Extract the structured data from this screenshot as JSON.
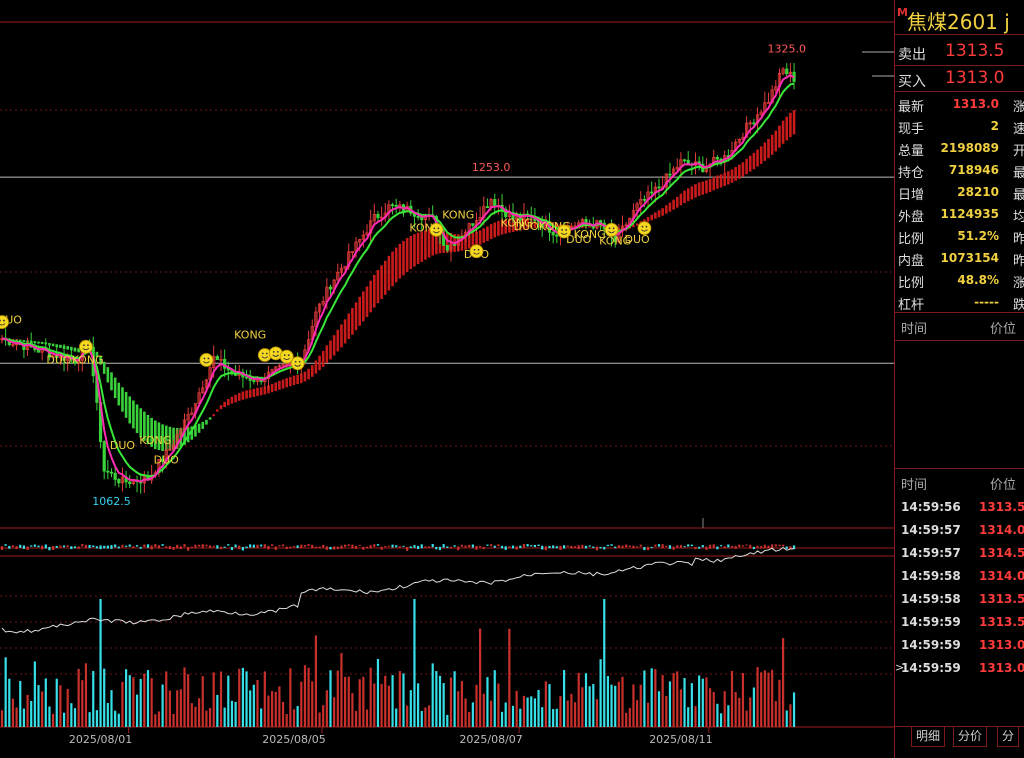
{
  "symbol": {
    "badge": "M",
    "name": "焦煤2601",
    "code_partial": "j"
  },
  "bid_ask": {
    "sell_label": "卖出",
    "sell_price": "1313.5",
    "buy_label": "买入",
    "buy_price": "1313.0"
  },
  "quote": [
    {
      "label": "最新",
      "value": "1313.0",
      "color": "#ff3b3b",
      "right_label": "涨"
    },
    {
      "label": "现手",
      "value": "2",
      "color": "#f0d040",
      "right_label": "速"
    },
    {
      "label": "总量",
      "value": "2198089",
      "color": "#f0d040",
      "right_label": "开"
    },
    {
      "label": "持仓",
      "value": "718946",
      "color": "#f0d040",
      "right_label": "最"
    },
    {
      "label": "日增",
      "value": "28210",
      "color": "#f0d040",
      "right_label": "最"
    },
    {
      "label": "外盘",
      "value": "1124935",
      "color": "#f0d040",
      "right_label": "均"
    },
    {
      "label": "比例",
      "value": "51.2%",
      "color": "#f0d040",
      "right_label": "昨"
    },
    {
      "label": "内盘",
      "value": "1073154",
      "color": "#f0d040",
      "right_label": "昨"
    },
    {
      "label": "比例",
      "value": "48.8%",
      "color": "#f0d040",
      "right_label": "涨"
    },
    {
      "label": "杠杆",
      "value": "-----",
      "color": "#f0d040",
      "right_label": "跌"
    }
  ],
  "mini_header": {
    "time": "时间",
    "price": "价位"
  },
  "ticks_header": {
    "time": "时间",
    "price": "价位"
  },
  "ticks": [
    {
      "time": "14:59:56",
      "price": "1313.5",
      "color": "#ff3b3b"
    },
    {
      "time": "14:59:57",
      "price": "1314.0",
      "color": "#ff3b3b"
    },
    {
      "time": "14:59:57",
      "price": "1314.5",
      "color": "#ff3b3b"
    },
    {
      "time": "14:59:58",
      "price": "1314.0",
      "color": "#ff3b3b"
    },
    {
      "time": "14:59:58",
      "price": "1313.5",
      "color": "#ff3b3b"
    },
    {
      "time": "14:59:59",
      "price": "1313.5",
      "color": "#ff3b3b"
    },
    {
      "time": "14:59:59",
      "price": "1313.0",
      "color": "#ff3b3b"
    },
    {
      "time": "14:59:59",
      "price": "1313.0",
      "color": "#ff3b3b",
      "marker": ">"
    }
  ],
  "tabs": [
    "明细",
    "分价",
    "分"
  ],
  "colors": {
    "up": "#e23b3b",
    "down": "#35e0e8",
    "ribbon_green": "#3ad23a",
    "ribbon_red": "#c91b1b",
    "ma_fast": "#ff2bb3",
    "ma_slow": "#38e838",
    "signal": "#f0d040"
  },
  "chart_data": {
    "type": "candlestick",
    "x_labels": [
      {
        "label": "2025/08/01",
        "index": 27
      },
      {
        "label": "2025/08/05",
        "index": 80
      },
      {
        "label": "2025/08/07",
        "index": 134
      },
      {
        "label": "2025/08/11",
        "index": 186
      }
    ],
    "price_range": [
      1040,
      1335
    ],
    "high_label": {
      "text": "1325.0",
      "index": 215,
      "value": 1325.0
    },
    "low_label": {
      "text": "1062.5",
      "index": 30,
      "value": 1062.5
    },
    "mid_label": {
      "text": "1253.0",
      "index": 134,
      "value": 1253.0
    },
    "h_lines": [
      1253.0,
      1140.0
    ],
    "anchors": [
      [
        0,
        1155
      ],
      [
        10,
        1148
      ],
      [
        20,
        1142
      ],
      [
        24,
        1152
      ],
      [
        28,
        1075
      ],
      [
        33,
        1068
      ],
      [
        40,
        1070
      ],
      [
        46,
        1088
      ],
      [
        52,
        1112
      ],
      [
        58,
        1143
      ],
      [
        64,
        1133
      ],
      [
        70,
        1130
      ],
      [
        76,
        1136
      ],
      [
        82,
        1142
      ],
      [
        86,
        1170
      ],
      [
        90,
        1188
      ],
      [
        96,
        1208
      ],
      [
        102,
        1228
      ],
      [
        106,
        1235
      ],
      [
        112,
        1233
      ],
      [
        118,
        1227
      ],
      [
        122,
        1210
      ],
      [
        128,
        1223
      ],
      [
        134,
        1240
      ],
      [
        140,
        1228
      ],
      [
        146,
        1228
      ],
      [
        152,
        1219
      ],
      [
        158,
        1225
      ],
      [
        164,
        1224
      ],
      [
        168,
        1214
      ],
      [
        174,
        1235
      ],
      [
        180,
        1247
      ],
      [
        186,
        1262
      ],
      [
        192,
        1259
      ],
      [
        198,
        1265
      ],
      [
        204,
        1283
      ],
      [
        210,
        1300
      ],
      [
        214,
        1318
      ],
      [
        217,
        1313
      ]
    ],
    "signals": [
      {
        "text": "DUO",
        "index": 2,
        "value": 1164
      },
      {
        "text": "DUOKONG",
        "index": 20,
        "value": 1140
      },
      {
        "text": "DUO",
        "index": 33,
        "value": 1088
      },
      {
        "text": "KONG",
        "index": 42,
        "value": 1091
      },
      {
        "text": "DUO",
        "index": 45,
        "value": 1079
      },
      {
        "text": "KONG",
        "index": 68,
        "value": 1155
      },
      {
        "text": "KONG",
        "index": 125,
        "value": 1228
      },
      {
        "text": "KONG",
        "index": 116,
        "value": 1220
      },
      {
        "text": "DUO",
        "index": 130,
        "value": 1204
      },
      {
        "text": "KONG",
        "index": 141,
        "value": 1223
      },
      {
        "text": "DUOKONG",
        "index": 148,
        "value": 1221
      },
      {
        "text": "DUO",
        "index": 158,
        "value": 1213
      },
      {
        "text": "KONG",
        "index": 161,
        "value": 1216
      },
      {
        "text": "KONG",
        "index": 168,
        "value": 1212
      },
      {
        "text": "DUO",
        "index": 174,
        "value": 1213
      }
    ],
    "smileys": [
      {
        "index": 0,
        "value": 1165
      },
      {
        "index": 23,
        "value": 1150
      },
      {
        "index": 56,
        "value": 1142
      },
      {
        "index": 72,
        "value": 1145
      },
      {
        "index": 75,
        "value": 1146
      },
      {
        "index": 78,
        "value": 1144
      },
      {
        "index": 81,
        "value": 1140
      },
      {
        "index": 119,
        "value": 1221
      },
      {
        "index": 130,
        "value": 1208
      },
      {
        "index": 154,
        "value": 1220
      },
      {
        "index": 167,
        "value": 1221
      },
      {
        "index": 176,
        "value": 1222
      }
    ]
  }
}
